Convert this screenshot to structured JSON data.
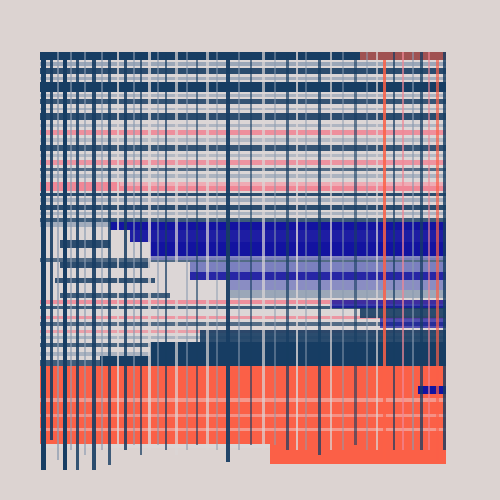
{
  "artwork": {
    "kind": "abstract generative glitch composition",
    "palette": {
      "background": "#dcd3d1",
      "navy": "#173d63",
      "pale": "#dcd6d6",
      "slate": "#8b9bb0",
      "pink": "#f08796",
      "royal_blue": "#1313a0",
      "periwinkle": "#7b80bf",
      "coral": "#fb6047",
      "blush": "#eecfd1"
    }
  }
}
